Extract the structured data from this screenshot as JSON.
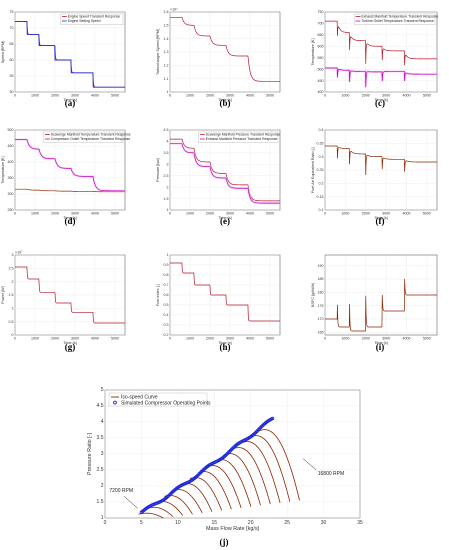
{
  "colors": {
    "red": "#b2182b",
    "blue": "#1f2ad6",
    "magenta": "#c000c0",
    "pink": "#f4b6f4",
    "brown": "#8b2500",
    "axis": "#444444"
  },
  "panels_text": {
    "a": {
      "label": "(a)",
      "legend": [
        "Engine Speed Transient Response",
        "Engine Setting Speed"
      ],
      "xlabel": "Time [s]",
      "ylabel": "Speed [RPM]"
    },
    "b": {
      "label": "(b)",
      "legend": [],
      "xlabel": "Time [s]",
      "ylabel": "Turbocharger Speed [RPM]",
      "exp": "×10⁴"
    },
    "c": {
      "label": "(c)",
      "legend": [
        "Exhaust Manifold Temperature Transient Response",
        "Turbine Outlet Temperature Transient Response"
      ],
      "xlabel": "Time [s]",
      "ylabel": "Temperature [K]"
    },
    "d": {
      "label": "(d)",
      "legend": [
        "Scavenge Manifold Temperature Transient Response",
        "Compressor Outlet Temperature Transient Response"
      ],
      "xlabel": "Time [s]",
      "ylabel": "Temperature [K]"
    },
    "e": {
      "label": "(e)",
      "legend": [
        "Scavenge Manifold Pressure Transient Response",
        "Exhaust Manifold Pressure Transient Response"
      ],
      "xlabel": "Time [s]",
      "ylabel": "Pressure [bar]"
    },
    "f": {
      "label": "(f)",
      "legend": [],
      "xlabel": "Time [s]",
      "ylabel": "Fuel Air Equivalent Ratio [-]"
    },
    "g": {
      "label": "(g)",
      "legend": [],
      "xlabel": "Time [s]",
      "ylabel": "Power [W]",
      "exp": "×10⁷"
    },
    "h": {
      "label": "(h)",
      "legend": [],
      "xlabel": "Time [s]",
      "ylabel": "Fuel Index [-]"
    },
    "i": {
      "label": "(i)",
      "legend": [],
      "xlabel": "Time [s]",
      "ylabel": "BSFC [g/kWh]"
    },
    "j": {
      "label": "(j)",
      "legend": [
        "Iso-speed Curve",
        "Simulated Compressor Operating Points"
      ],
      "xlabel": "Mass Flow Rate [kg/s]",
      "ylabel": "Pressure Ratio [-]",
      "annotations": [
        "16800 RPM",
        "7200 RPM"
      ]
    }
  },
  "chart_data": [
    {
      "id": "a",
      "type": "line",
      "xlim": [
        0,
        5500
      ],
      "ylim": [
        50,
        75
      ],
      "xticks": [
        0,
        1000,
        2000,
        3000,
        4000,
        5000
      ],
      "yticks": [
        50,
        55,
        60,
        65,
        70,
        75
      ],
      "series": [
        {
          "name": "Engine Speed Transient Response",
          "color": "red",
          "steps": [
            [
              0,
              72
            ],
            [
              600,
              68
            ],
            [
              1200,
              64.5
            ],
            [
              2000,
              60
            ],
            [
              2800,
              56
            ],
            [
              3900,
              51.5
            ],
            [
              5500,
              51.5
            ]
          ],
          "tau": 20
        },
        {
          "name": "Engine Setting Speed",
          "color": "blue",
          "steps": [
            [
              0,
              72
            ],
            [
              600,
              68
            ],
            [
              1200,
              64.5
            ],
            [
              2000,
              60
            ],
            [
              2800,
              56
            ],
            [
              3900,
              51.5
            ],
            [
              5500,
              51.5
            ]
          ],
          "tau": 0
        }
      ]
    },
    {
      "id": "b",
      "type": "line",
      "xlim": [
        0,
        5500
      ],
      "ylim": [
        1,
        1.6
      ],
      "xticks": [
        0,
        1000,
        2000,
        3000,
        4000,
        5000
      ],
      "yticks": [
        1,
        1.1,
        1.2,
        1.3,
        1.4,
        1.5,
        1.6
      ],
      "series": [
        {
          "color": "red",
          "steps": [
            [
              0,
              1.56
            ],
            [
              600,
              1.5
            ],
            [
              1200,
              1.42
            ],
            [
              2000,
              1.35
            ],
            [
              2800,
              1.27
            ],
            [
              3900,
              1.08
            ],
            [
              5500,
              1.08
            ]
          ],
          "tau": 110
        }
      ]
    },
    {
      "id": "c",
      "type": "line",
      "xlim": [
        0,
        5500
      ],
      "ylim": [
        400,
        750
      ],
      "xticks": [
        0,
        1000,
        2000,
        3000,
        4000,
        5000
      ],
      "yticks": [
        400,
        450,
        500,
        550,
        600,
        650,
        700,
        750
      ],
      "series": [
        {
          "name": "Exhaust Manifold Temperature Transient Response",
          "color": "red",
          "steps": [
            [
              0,
              710
            ],
            [
              600,
              660
            ],
            [
              1200,
              625
            ],
            [
              2000,
              600
            ],
            [
              2800,
              580
            ],
            [
              3900,
              545
            ],
            [
              5500,
              545
            ]
          ],
          "tau": 110,
          "spike": -110
        },
        {
          "name": "Turbine Outlet Temperature Transient Response",
          "color": "magenta",
          "steps": [
            [
              0,
              505
            ],
            [
              600,
              495
            ],
            [
              1200,
              490
            ],
            [
              2000,
              488
            ],
            [
              2800,
              490
            ],
            [
              3900,
              478
            ],
            [
              5500,
              478
            ]
          ],
          "tau": 120,
          "spike": -75
        }
      ]
    },
    {
      "id": "d",
      "type": "line",
      "xlim": [
        0,
        5500
      ],
      "ylim": [
        250,
        500
      ],
      "xticks": [
        0,
        1000,
        2000,
        3000,
        4000,
        5000
      ],
      "yticks": [
        250,
        300,
        350,
        400,
        450,
        500
      ],
      "series": [
        {
          "name": "Scavenge Manifold Temperature Transient Response",
          "color": "brown",
          "steps": [
            [
              0,
              315
            ],
            [
              600,
              312
            ],
            [
              1200,
              310
            ],
            [
              2000,
              309
            ],
            [
              2800,
              308
            ],
            [
              3900,
              307
            ],
            [
              5500,
              307
            ]
          ],
          "tau": 120
        },
        {
          "name": "Compressor Outlet Temperature Transient Response",
          "color": "magenta",
          "steps": [
            [
              0,
              470
            ],
            [
              600,
              440
            ],
            [
              1200,
              410
            ],
            [
              2000,
              380
            ],
            [
              2800,
              355
            ],
            [
              3900,
              310
            ],
            [
              5500,
              310
            ]
          ],
          "tau": 120
        }
      ]
    },
    {
      "id": "e",
      "type": "line",
      "xlim": [
        0,
        5500
      ],
      "ylim": [
        1,
        4.5
      ],
      "xticks": [
        0,
        1000,
        2000,
        3000,
        4000,
        5000
      ],
      "yticks": [
        1,
        1.5,
        2,
        2.5,
        3,
        3.5,
        4,
        4.5
      ],
      "series": [
        {
          "name": "Scavenge Manifold Pressure Transient Response",
          "color": "red",
          "steps": [
            [
              0,
              4.1
            ],
            [
              600,
              3.7
            ],
            [
              1200,
              3.1
            ],
            [
              2000,
              2.6
            ],
            [
              2800,
              2.1
            ],
            [
              3900,
              1.4
            ],
            [
              5500,
              1.4
            ]
          ],
          "tau": 110
        },
        {
          "name": "Exhaust Manifold Pressure Transient Response",
          "color": "magenta",
          "steps": [
            [
              0,
              3.9
            ],
            [
              600,
              3.5
            ],
            [
              1200,
              2.9
            ],
            [
              2000,
              2.4
            ],
            [
              2800,
              1.95
            ],
            [
              3900,
              1.3
            ],
            [
              5500,
              1.3
            ]
          ],
          "tau": 110
        }
      ]
    },
    {
      "id": "f",
      "type": "line",
      "xlim": [
        0,
        5500
      ],
      "ylim": [
        0.1,
        0.4
      ],
      "xticks": [
        0,
        1000,
        2000,
        3000,
        4000,
        5000
      ],
      "yticks": [
        0.1,
        0.15,
        0.2,
        0.25,
        0.3,
        0.35,
        0.4
      ],
      "series": [
        {
          "color": "brown",
          "steps": [
            [
              0,
              0.34
            ],
            [
              600,
              0.33
            ],
            [
              1200,
              0.31
            ],
            [
              2000,
              0.3
            ],
            [
              2800,
              0.29
            ],
            [
              3900,
              0.28
            ],
            [
              5500,
              0.28
            ]
          ],
          "tau": 130,
          "spike": -0.085
        }
      ]
    },
    {
      "id": "g",
      "type": "line",
      "xlim": [
        0,
        5500
      ],
      "ylim": [
        0,
        3
      ],
      "xticks": [
        0,
        1000,
        2000,
        3000,
        4000,
        5000
      ],
      "yticks": [
        0,
        0.5,
        1,
        1.5,
        2,
        2.5,
        3
      ],
      "series": [
        {
          "color": "red",
          "steps": [
            [
              0,
              2.55
            ],
            [
              600,
              2.1
            ],
            [
              1200,
              1.6
            ],
            [
              2000,
              1.2
            ],
            [
              2800,
              0.85
            ],
            [
              3900,
              0.45
            ],
            [
              5500,
              0.45
            ]
          ],
          "tau": 15
        }
      ]
    },
    {
      "id": "h",
      "type": "line",
      "xlim": [
        0,
        5500
      ],
      "ylim": [
        0.2,
        1
      ],
      "xticks": [
        0,
        1000,
        2000,
        3000,
        4000,
        5000
      ],
      "yticks": [
        0.2,
        0.3,
        0.4,
        0.5,
        0.6,
        0.7,
        0.8,
        0.9,
        1
      ],
      "series": [
        {
          "color": "red",
          "steps": [
            [
              0,
              0.92
            ],
            [
              600,
              0.82
            ],
            [
              1200,
              0.7
            ],
            [
              2000,
              0.6
            ],
            [
              2800,
              0.5
            ],
            [
              3900,
              0.34
            ],
            [
              5500,
              0.34
            ]
          ],
          "tau": 12
        }
      ]
    },
    {
      "id": "i",
      "type": "line",
      "xlim": [
        0,
        5500
      ],
      "ylim": [
        164,
        194
      ],
      "xticks": [
        0,
        1000,
        2000,
        3000,
        4000,
        5000
      ],
      "yticks": [
        165,
        170,
        175,
        180,
        185,
        190
      ],
      "series": [
        {
          "color": "brown",
          "steps": [
            [
              0,
              170
            ],
            [
              600,
              167
            ],
            [
              1200,
              165.5
            ],
            [
              2000,
              167
            ],
            [
              2800,
              173
            ],
            [
              3900,
              179
            ],
            [
              5500,
              179
            ]
          ],
          "tau": 8,
          "spike": 14
        }
      ]
    },
    {
      "id": "j",
      "type": "scatter",
      "xlim": [
        0,
        35
      ],
      "ylim": [
        1,
        5
      ],
      "xticks": [
        0,
        5,
        10,
        15,
        20,
        25,
        30,
        35
      ],
      "yticks": [
        1,
        1.5,
        2,
        2.5,
        3,
        3.5,
        4,
        4.5,
        5
      ],
      "series": [
        {
          "name": "Iso-speed Curve",
          "color": "brown",
          "curves": 15,
          "speed_range": [
            "7200 RPM",
            "16800 RPM"
          ]
        },
        {
          "name": "Simulated Compressor Operating Points",
          "color": "blue",
          "x_range": [
            5,
            23
          ],
          "y_range": [
            1.18,
            4.1
          ]
        }
      ]
    }
  ]
}
